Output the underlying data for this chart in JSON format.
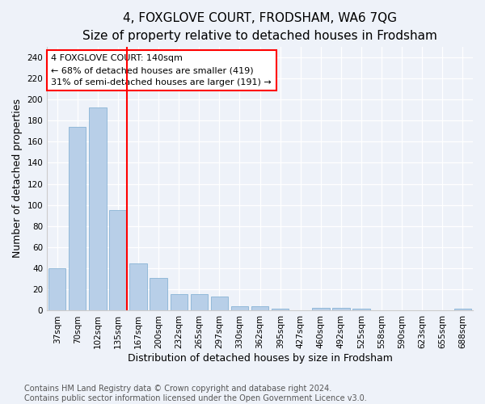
{
  "title": "4, FOXGLOVE COURT, FRODSHAM, WA6 7QG",
  "subtitle": "Size of property relative to detached houses in Frodsham",
  "xlabel": "Distribution of detached houses by size in Frodsham",
  "ylabel": "Number of detached properties",
  "categories": [
    "37sqm",
    "70sqm",
    "102sqm",
    "135sqm",
    "167sqm",
    "200sqm",
    "232sqm",
    "265sqm",
    "297sqm",
    "330sqm",
    "362sqm",
    "395sqm",
    "427sqm",
    "460sqm",
    "492sqm",
    "525sqm",
    "558sqm",
    "590sqm",
    "623sqm",
    "655sqm",
    "688sqm"
  ],
  "values": [
    40,
    174,
    192,
    95,
    45,
    31,
    16,
    16,
    13,
    4,
    4,
    2,
    0,
    3,
    3,
    2,
    0,
    0,
    0,
    0,
    2
  ],
  "bar_color": "#b8cfe8",
  "bar_edge_color": "#7aaacf",
  "red_line_index": 3,
  "annotation_line1": "4 FOXGLOVE COURT: 140sqm",
  "annotation_line2": "← 68% of detached houses are smaller (419)",
  "annotation_line3": "31% of semi-detached houses are larger (191) →",
  "annotation_box_color": "white",
  "annotation_box_edge_color": "red",
  "ylim": [
    0,
    250
  ],
  "yticks": [
    0,
    20,
    40,
    60,
    80,
    100,
    120,
    140,
    160,
    180,
    200,
    220,
    240
  ],
  "title_fontsize": 11,
  "xlabel_fontsize": 9,
  "ylabel_fontsize": 9,
  "tick_fontsize": 7.5,
  "annotation_fontsize": 8,
  "footer_line1": "Contains HM Land Registry data © Crown copyright and database right 2024.",
  "footer_line2": "Contains public sector information licensed under the Open Government Licence v3.0.",
  "footer_fontsize": 7,
  "background_color": "#eef2f9",
  "grid_color": "white"
}
